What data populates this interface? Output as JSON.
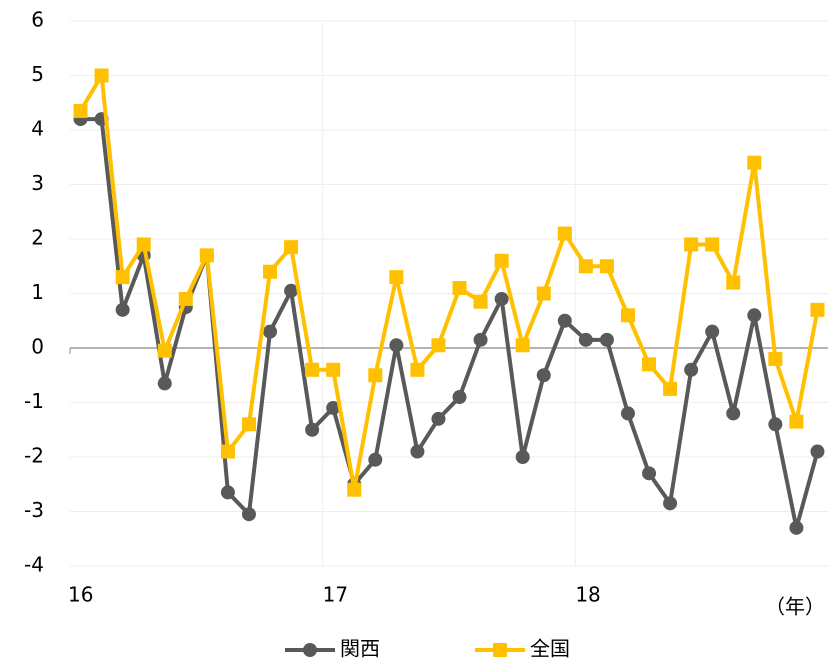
{
  "chart_data": {
    "type": "line",
    "x_label": "（年）",
    "categories": [
      "16",
      null,
      null,
      null,
      null,
      null,
      null,
      null,
      null,
      null,
      null,
      null,
      "17",
      null,
      null,
      null,
      null,
      null,
      null,
      null,
      null,
      null,
      null,
      null,
      "18",
      null,
      null,
      null,
      null,
      null,
      null,
      null,
      null,
      null,
      null,
      null
    ],
    "series": [
      {
        "name": "関西",
        "color": "#595959",
        "marker": "circle",
        "values": [
          4.2,
          4.2,
          0.7,
          1.7,
          -0.65,
          0.75,
          1.7,
          -2.65,
          -3.05,
          0.3,
          1.05,
          -1.5,
          -1.1,
          -2.5,
          -2.05,
          0.05,
          -1.9,
          -1.3,
          -0.9,
          0.15,
          0.9,
          -2.0,
          -0.5,
          0.5,
          0.15,
          0.15,
          -1.2,
          -2.3,
          -2.85,
          -0.4,
          0.3,
          -1.2,
          0.6,
          -1.4,
          -3.3,
          -1.9
        ]
      },
      {
        "name": "全国",
        "color": "#FFC000",
        "marker": "square",
        "values": [
          4.35,
          5.0,
          1.3,
          1.9,
          -0.05,
          0.9,
          1.7,
          -1.9,
          -1.4,
          1.4,
          1.85,
          -0.4,
          -0.4,
          -2.6,
          -0.5,
          1.3,
          -0.4,
          0.05,
          1.1,
          0.85,
          1.6,
          0.05,
          1.0,
          2.1,
          1.5,
          1.5,
          0.6,
          -0.3,
          -0.75,
          1.9,
          1.9,
          1.2,
          3.4,
          -0.2,
          -1.35,
          0.7
        ]
      }
    ],
    "ylim": [
      -4,
      6
    ],
    "yticks": [
      -4,
      -3,
      -2,
      -1,
      0,
      1,
      2,
      3,
      4,
      5,
      6
    ],
    "grid": true
  }
}
